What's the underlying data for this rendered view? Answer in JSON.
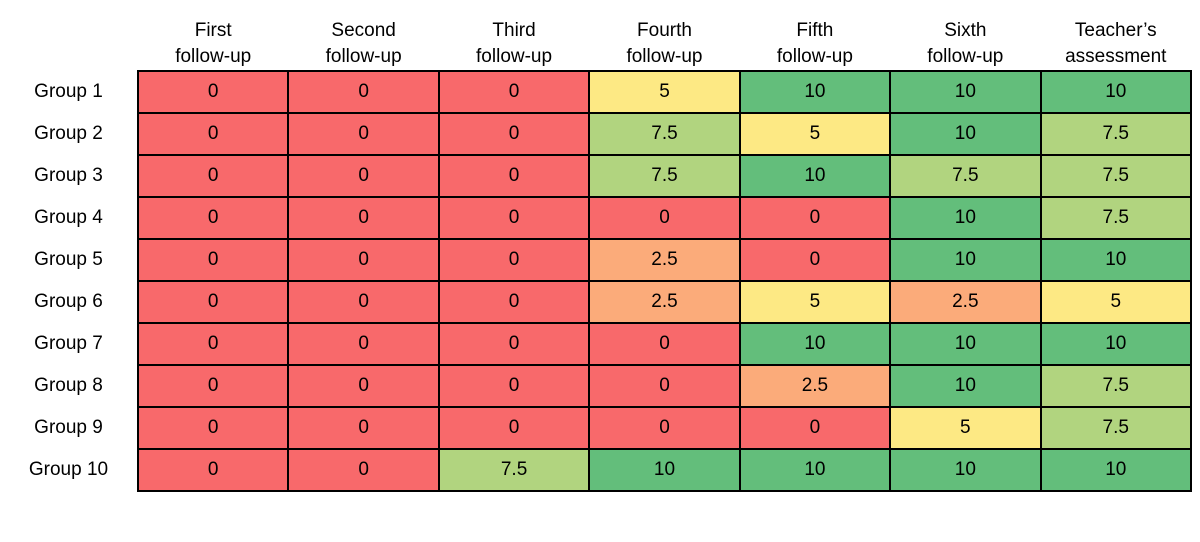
{
  "chart_data": {
    "type": "heatmap",
    "columns": [
      "First\nfollow-up",
      "Second\nfollow-up",
      "Third\nfollow-up",
      "Fourth\nfollow-up",
      "Fifth\nfollow-up",
      "Sixth\nfollow-up",
      "Teacher’s\nassessment"
    ],
    "rows": [
      "Group 1",
      "Group 2",
      "Group 3",
      "Group 4",
      "Group 5",
      "Group 6",
      "Group 7",
      "Group 8",
      "Group 9",
      "Group 10"
    ],
    "values": [
      [
        0,
        0,
        0,
        5,
        10,
        10,
        10
      ],
      [
        0,
        0,
        0,
        7.5,
        5,
        10,
        7.5
      ],
      [
        0,
        0,
        0,
        7.5,
        10,
        7.5,
        7.5
      ],
      [
        0,
        0,
        0,
        0,
        0,
        10,
        7.5
      ],
      [
        0,
        0,
        0,
        2.5,
        0,
        10,
        10
      ],
      [
        0,
        0,
        0,
        2.5,
        5,
        2.5,
        5
      ],
      [
        0,
        0,
        0,
        0,
        10,
        10,
        10
      ],
      [
        0,
        0,
        0,
        0,
        2.5,
        10,
        7.5
      ],
      [
        0,
        0,
        0,
        0,
        0,
        5,
        7.5
      ],
      [
        0,
        0,
        7.5,
        10,
        10,
        10,
        10
      ]
    ],
    "value_range": [
      0,
      10
    ],
    "color_scale": {
      "0": "#F8696B",
      "2.5": "#FBAB7A",
      "5": "#FDE984",
      "7.5": "#B1D47F",
      "10": "#63BE7B"
    },
    "title": "",
    "xlabel": "",
    "ylabel": "",
    "legend": false,
    "grid": true,
    "cell_border_color": "#000000",
    "text_color": "#000000"
  }
}
